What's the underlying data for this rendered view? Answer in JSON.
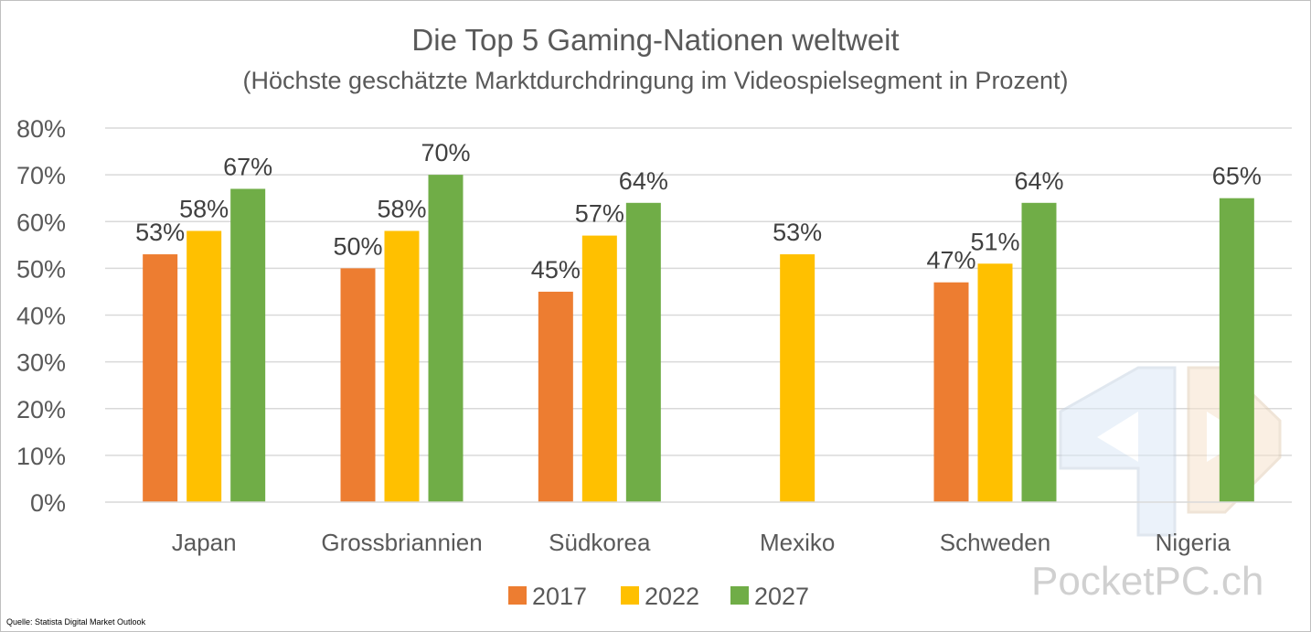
{
  "chart_data": {
    "type": "bar",
    "title": "Die Top 5 Gaming-Nationen weltweit",
    "subtitle": "(Höchste geschätzte Marktdurchdringung im Videospielsegment in Prozent)",
    "categories": [
      "Japan",
      "Grossbriannien",
      "Südkorea",
      "Mexiko",
      "Schweden",
      "Nigeria"
    ],
    "series": [
      {
        "name": "2017",
        "color": "#ED7D31",
        "values": [
          53,
          50,
          45,
          null,
          47,
          null
        ],
        "labels": [
          "53%",
          "50%",
          "45%",
          "",
          "47%",
          ""
        ]
      },
      {
        "name": "2022",
        "color": "#FFC000",
        "values": [
          58,
          58,
          57,
          53,
          51,
          null
        ],
        "labels": [
          "58%",
          "58%",
          "57%",
          "53%",
          "51%",
          ""
        ]
      },
      {
        "name": "2027",
        "color": "#70AD47",
        "values": [
          67,
          70,
          64,
          null,
          64,
          65
        ],
        "labels": [
          "67%",
          "70%",
          "64%",
          "",
          "64%",
          "65%"
        ]
      }
    ],
    "ylim": [
      0,
      80
    ],
    "yticks": [
      0,
      10,
      20,
      30,
      40,
      50,
      60,
      70,
      80
    ],
    "ytick_labels": [
      "0%",
      "10%",
      "20%",
      "30%",
      "40%",
      "50%",
      "60%",
      "70%",
      "80%"
    ],
    "grid": true,
    "legend_position": "bottom"
  },
  "source": "Quelle: Statista Digital Market Outlook",
  "watermark": "PocketPC.ch"
}
